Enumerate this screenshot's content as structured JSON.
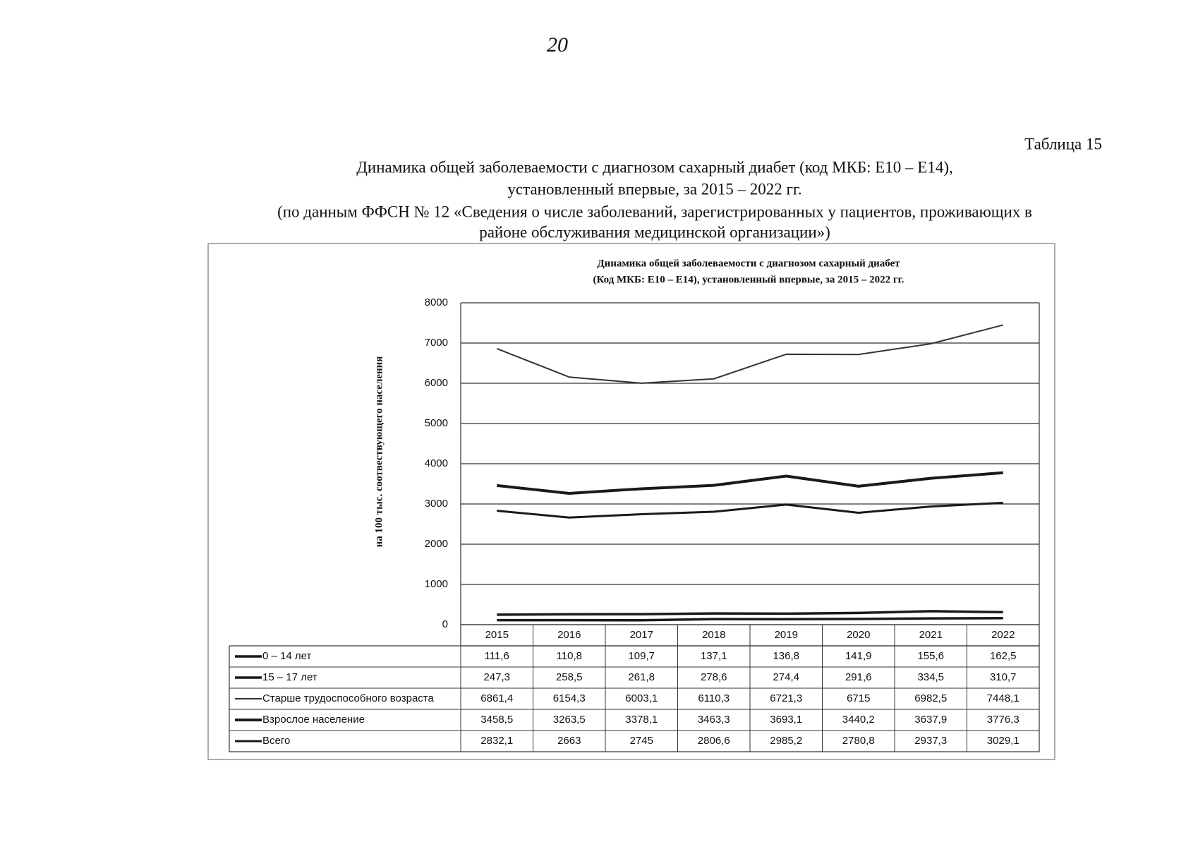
{
  "page_number": "20",
  "table_label": "Таблица 15",
  "heading": [
    "Динамика общей заболеваемости с диагнозом сахарный диабет (код МКБ: E10 – E14),",
    "установленный впервые, за 2015 – 2022 гг.",
    "(по данным ФФСН № 12 «Сведения о числе заболеваний, зарегистрированных у пациентов, проживающих в",
    "районе обслуживания медицинской организации»)"
  ],
  "chart_data": {
    "type": "line",
    "title": [
      "Динамика общей заболеваемости с диагнозом сахарный диабет",
      "(Код МКБ: E10 – E14), установленный впервые, за 2015 – 2022 гг."
    ],
    "y_label": "на 100 тыс. соотвествующего населения",
    "categories": [
      "2015",
      "2016",
      "2017",
      "2018",
      "2019",
      "2020",
      "2021",
      "2022"
    ],
    "series": [
      {
        "name": "0 – 14 лет",
        "color": "#1a1a1a",
        "values": [
          111.6,
          110.8,
          109.7,
          137.1,
          136.8,
          141.9,
          155.6,
          162.5
        ],
        "value_labels": [
          "111,6",
          "110,8",
          "109,7",
          "137,1",
          "136,8",
          "141,9",
          "155,6",
          "162,5"
        ]
      },
      {
        "name": "15 – 17 лет",
        "color": "#1a1a1a",
        "values": [
          247.3,
          258.5,
          261.8,
          278.6,
          274.4,
          291.6,
          334.5,
          310.7
        ],
        "value_labels": [
          "247,3",
          "258,5",
          "261,8",
          "278,6",
          "274,4",
          "291,6",
          "334,5",
          "310,7"
        ]
      },
      {
        "name": "Старше трудоспособного возраста",
        "color": "#333333",
        "values": [
          6861.4,
          6154.3,
          6003.1,
          6110.3,
          6721.3,
          6715,
          6982.5,
          7448.1
        ],
        "value_labels": [
          "6861,4",
          "6154,3",
          "6003,1",
          "6110,3",
          "6721,3",
          "6715",
          "6982,5",
          "7448,1"
        ]
      },
      {
        "name": "Взрослое население",
        "color": "#1a1a1a",
        "values": [
          3458.5,
          3263.5,
          3378.1,
          3463.3,
          3693.1,
          3440.2,
          3637.9,
          3776.3
        ],
        "value_labels": [
          "3458,5",
          "3263,5",
          "3378,1",
          "3463,3",
          "3693,1",
          "3440,2",
          "3637,9",
          "3776,3"
        ]
      },
      {
        "name": "Всего",
        "color": "#1a1a1a",
        "values": [
          2832.1,
          2663,
          2745,
          2806.6,
          2985.2,
          2780.8,
          2937.3,
          3029.1
        ],
        "value_labels": [
          "2832,1",
          "2663",
          "2745",
          "2806,6",
          "2985,2",
          "2780,8",
          "2937,3",
          "3029,1"
        ]
      }
    ],
    "ylim": [
      0,
      8000
    ],
    "yticks": [
      0,
      1000,
      2000,
      3000,
      4000,
      5000,
      6000,
      7000,
      8000
    ],
    "grid": true
  }
}
